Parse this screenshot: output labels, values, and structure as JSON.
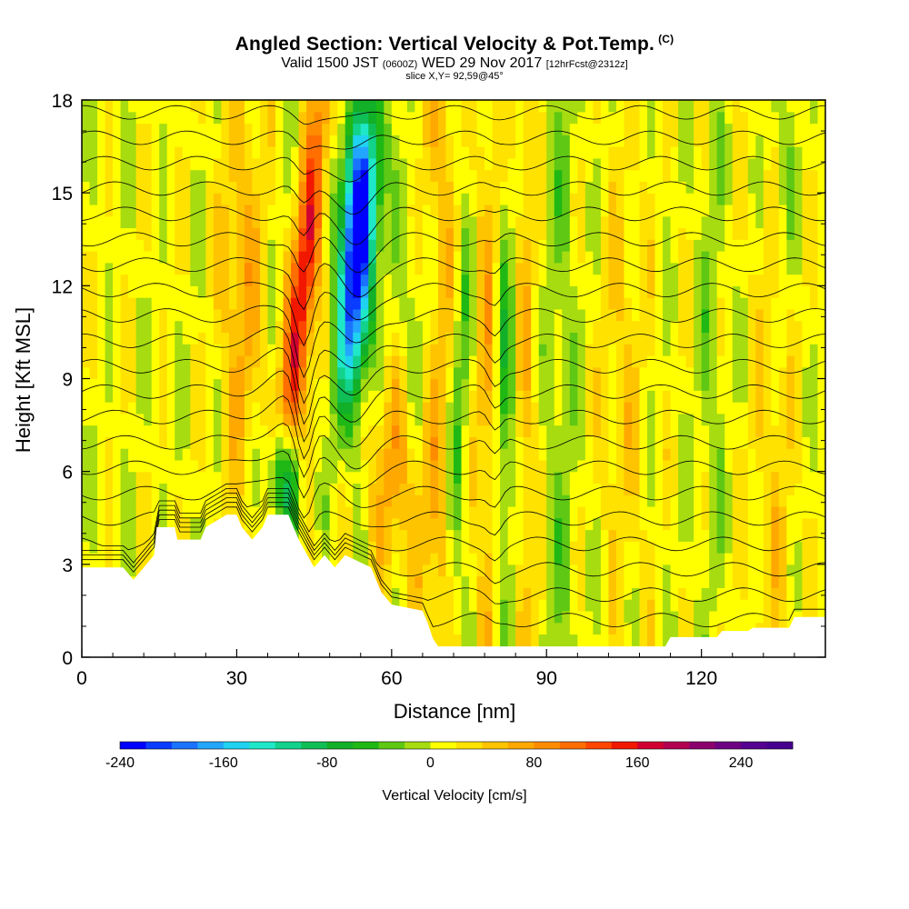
{
  "header": {
    "title": "Angled Section: Vertical Velocity & Pot.Temp.",
    "copyright": "(C)",
    "subtitle_main": "Valid 1500 JST",
    "subtitle_utc": "(0600Z)",
    "subtitle_date": "WED 29 Nov 2017",
    "subtitle_fcst": "[12hrFcst@2312z]",
    "slice": "slice X,Y= 92,59@45°"
  },
  "chart_data": {
    "type": "heatmap",
    "title": "Angled Section: Vertical Velocity & Pot.Temp.",
    "xlabel": "Distance [nm]",
    "ylabel": "Height [Kft MSL]",
    "xlim": [
      0,
      144
    ],
    "ylim": [
      0,
      18
    ],
    "x_ticks": [
      "0",
      "30",
      "60",
      "90",
      "120"
    ],
    "x_tick_values": [
      0,
      30,
      60,
      90,
      120
    ],
    "y_ticks": [
      "0",
      "3",
      "6",
      "9",
      "12",
      "15",
      "18"
    ],
    "y_tick_values": [
      0,
      3,
      6,
      9,
      12,
      15,
      18
    ],
    "colorbar": {
      "label": "Vertical Velocity [cm/s]",
      "range": [
        -240,
        280
      ],
      "step": 20,
      "tick_labels": [
        "-240",
        "-160",
        "-80",
        "0",
        "80",
        "160",
        "240"
      ],
      "tick_values": [
        -240,
        -160,
        -80,
        0,
        80,
        160,
        240
      ],
      "colors": [
        "#0000ff",
        "#0a3cff",
        "#1a73ff",
        "#23a6ff",
        "#1fd2f0",
        "#1fe8c8",
        "#12d28c",
        "#10be56",
        "#12b028",
        "#1fb815",
        "#5ec814",
        "#a6dc10",
        "#ffff00",
        "#ffe200",
        "#ffc400",
        "#ffa800",
        "#ff8c00",
        "#ff6e00",
        "#ff4600",
        "#f21800",
        "#d20030",
        "#b40050",
        "#8c006e",
        "#6e0082",
        "#550090",
        "#460090"
      ]
    },
    "contours": "potential temperature isentropes (K)",
    "features": {
      "updraft_max_cms": 180,
      "updraft_x_nm": 43,
      "downdraft_min_cms": -220,
      "downdraft_x_nm": 53,
      "downdraft_height_kft": 12
    },
    "terrain_kft": [
      {
        "x": 0,
        "h": 2.9
      },
      {
        "x": 8,
        "h": 2.9
      },
      {
        "x": 10,
        "h": 2.5
      },
      {
        "x": 12,
        "h": 2.9
      },
      {
        "x": 14,
        "h": 3.3
      },
      {
        "x": 14.5,
        "h": 4.2
      },
      {
        "x": 18,
        "h": 4.2
      },
      {
        "x": 18.5,
        "h": 3.8
      },
      {
        "x": 23,
        "h": 3.8
      },
      {
        "x": 24,
        "h": 4.2
      },
      {
        "x": 28,
        "h": 4.6
      },
      {
        "x": 30,
        "h": 4.6
      },
      {
        "x": 31,
        "h": 4.2
      },
      {
        "x": 33,
        "h": 3.8
      },
      {
        "x": 35,
        "h": 4.2
      },
      {
        "x": 36,
        "h": 4.6
      },
      {
        "x": 40,
        "h": 4.6
      },
      {
        "x": 42,
        "h": 3.8
      },
      {
        "x": 45,
        "h": 2.9
      },
      {
        "x": 47,
        "h": 3.3
      },
      {
        "x": 49,
        "h": 2.9
      },
      {
        "x": 51,
        "h": 3.3
      },
      {
        "x": 56,
        "h": 2.9
      },
      {
        "x": 58,
        "h": 2.1
      },
      {
        "x": 60,
        "h": 1.7
      },
      {
        "x": 66,
        "h": 1.5
      },
      {
        "x": 67,
        "h": 1.1
      },
      {
        "x": 68,
        "h": 0.6
      },
      {
        "x": 69,
        "h": 0.35
      },
      {
        "x": 113,
        "h": 0.35
      },
      {
        "x": 114,
        "h": 0.65
      },
      {
        "x": 123,
        "h": 0.65
      },
      {
        "x": 124,
        "h": 0.85
      },
      {
        "x": 129,
        "h": 0.85
      },
      {
        "x": 130,
        "h": 0.95
      },
      {
        "x": 137,
        "h": 0.95
      },
      {
        "x": 138,
        "h": 1.3
      },
      {
        "x": 144,
        "h": 1.3
      }
    ]
  }
}
